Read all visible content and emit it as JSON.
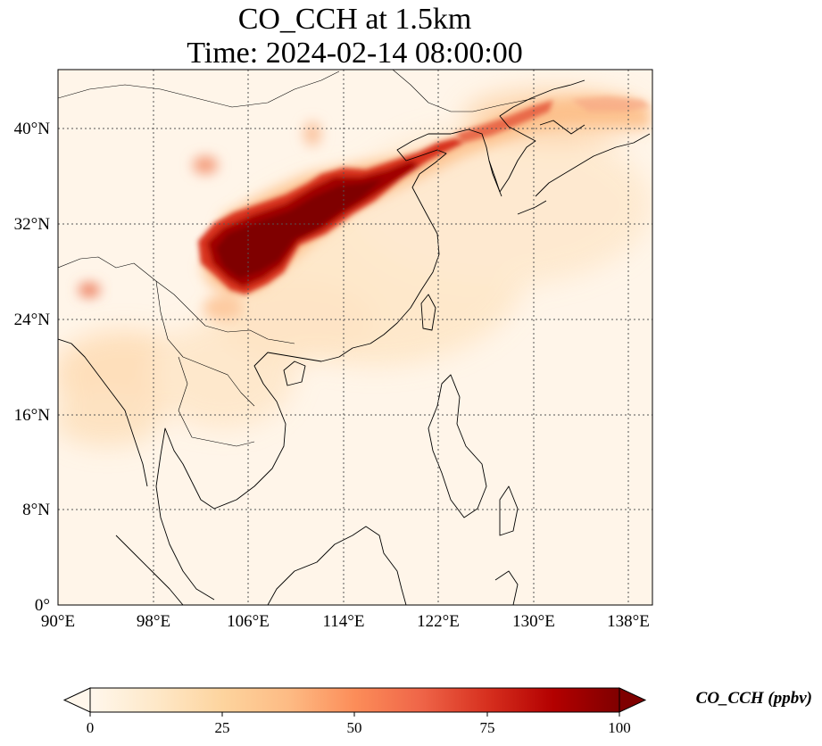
{
  "title": {
    "line1": "CO_CCH at 1.5km",
    "line2": "Time: 2024-02-14 08:00:00"
  },
  "map": {
    "extent": {
      "lon_min": 90,
      "lon_max": 140,
      "lat_min": 0,
      "lat_max": 45
    },
    "gridlines": true,
    "gridline_style": "dotted",
    "lon_ticks": [
      "90°E",
      "98°E",
      "106°E",
      "114°E",
      "122°E",
      "130°E",
      "138°E"
    ],
    "lat_ticks": [
      "0°",
      "8°N",
      "16°N",
      "24°N",
      "32°N",
      "40°N"
    ],
    "field": {
      "variable": "CO_CCH",
      "description_colormap": "OrRd",
      "high_concentration_region": "Sichuan Basin – North China Plain – Korea",
      "max_value_at_top_of_scale": 100
    }
  },
  "colorbar": {
    "min": 0,
    "max": 100,
    "ticks": [
      "0",
      "25",
      "50",
      "75",
      "100"
    ],
    "label": "CO_CCH (ppbv)",
    "extend": "both",
    "colors": [
      "#fff7ec",
      "#fee8c8",
      "#fdd49e",
      "#fdbb84",
      "#fc8d59",
      "#ef6548",
      "#d7301f",
      "#b30000",
      "#7f0000"
    ]
  }
}
